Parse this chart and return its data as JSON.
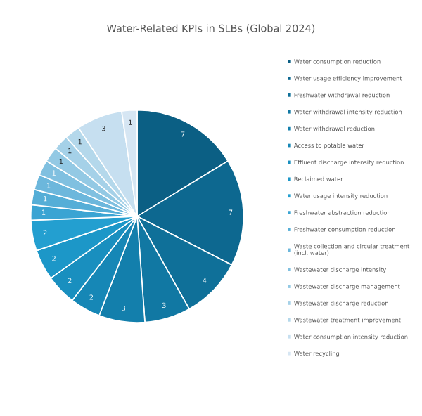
{
  "chart_data": {
    "type": "pie",
    "title": "Water-Related KPIs in SLBs (Global 2024)",
    "categories": [
      "Water consumption reduction",
      "Water usage efficiency improvement",
      "Freshwater withdrawal reduction",
      "Water withdrawal intensity reduction",
      "Water withdrawal reduction",
      "Access to potable water",
      "Effluent discharge intensity reduction",
      "Reclaimed water",
      "Water usage intensity reduction",
      "Freshwater abstraction reduction",
      "Freshwater consumption reduction",
      "Waste collection and circular treatment (incl. water)",
      "Wastewater discharge intensity",
      "Wastewater discharge management",
      "Wastewater discharge reduction",
      "Wastewater treatment improvement",
      "Water consumption intensity reduction",
      "Water recycling"
    ],
    "values": [
      7,
      7,
      4,
      3,
      3,
      2,
      2,
      2,
      2,
      1,
      1,
      1,
      1,
      1,
      1,
      1,
      3,
      1
    ],
    "colors": [
      "#0b5f84",
      "#0d6890",
      "#0f7099",
      "#1178a3",
      "#137fac",
      "#1687b6",
      "#198fbf",
      "#1c97c8",
      "#239fd0",
      "#3aa4d3",
      "#55aed7",
      "#6cb7dc",
      "#80c0e0",
      "#93c9e4",
      "#a5d1e8",
      "#b4d8eb",
      "#c6dff0",
      "#d6e6f3"
    ],
    "data_labels": true,
    "legend": "right"
  }
}
